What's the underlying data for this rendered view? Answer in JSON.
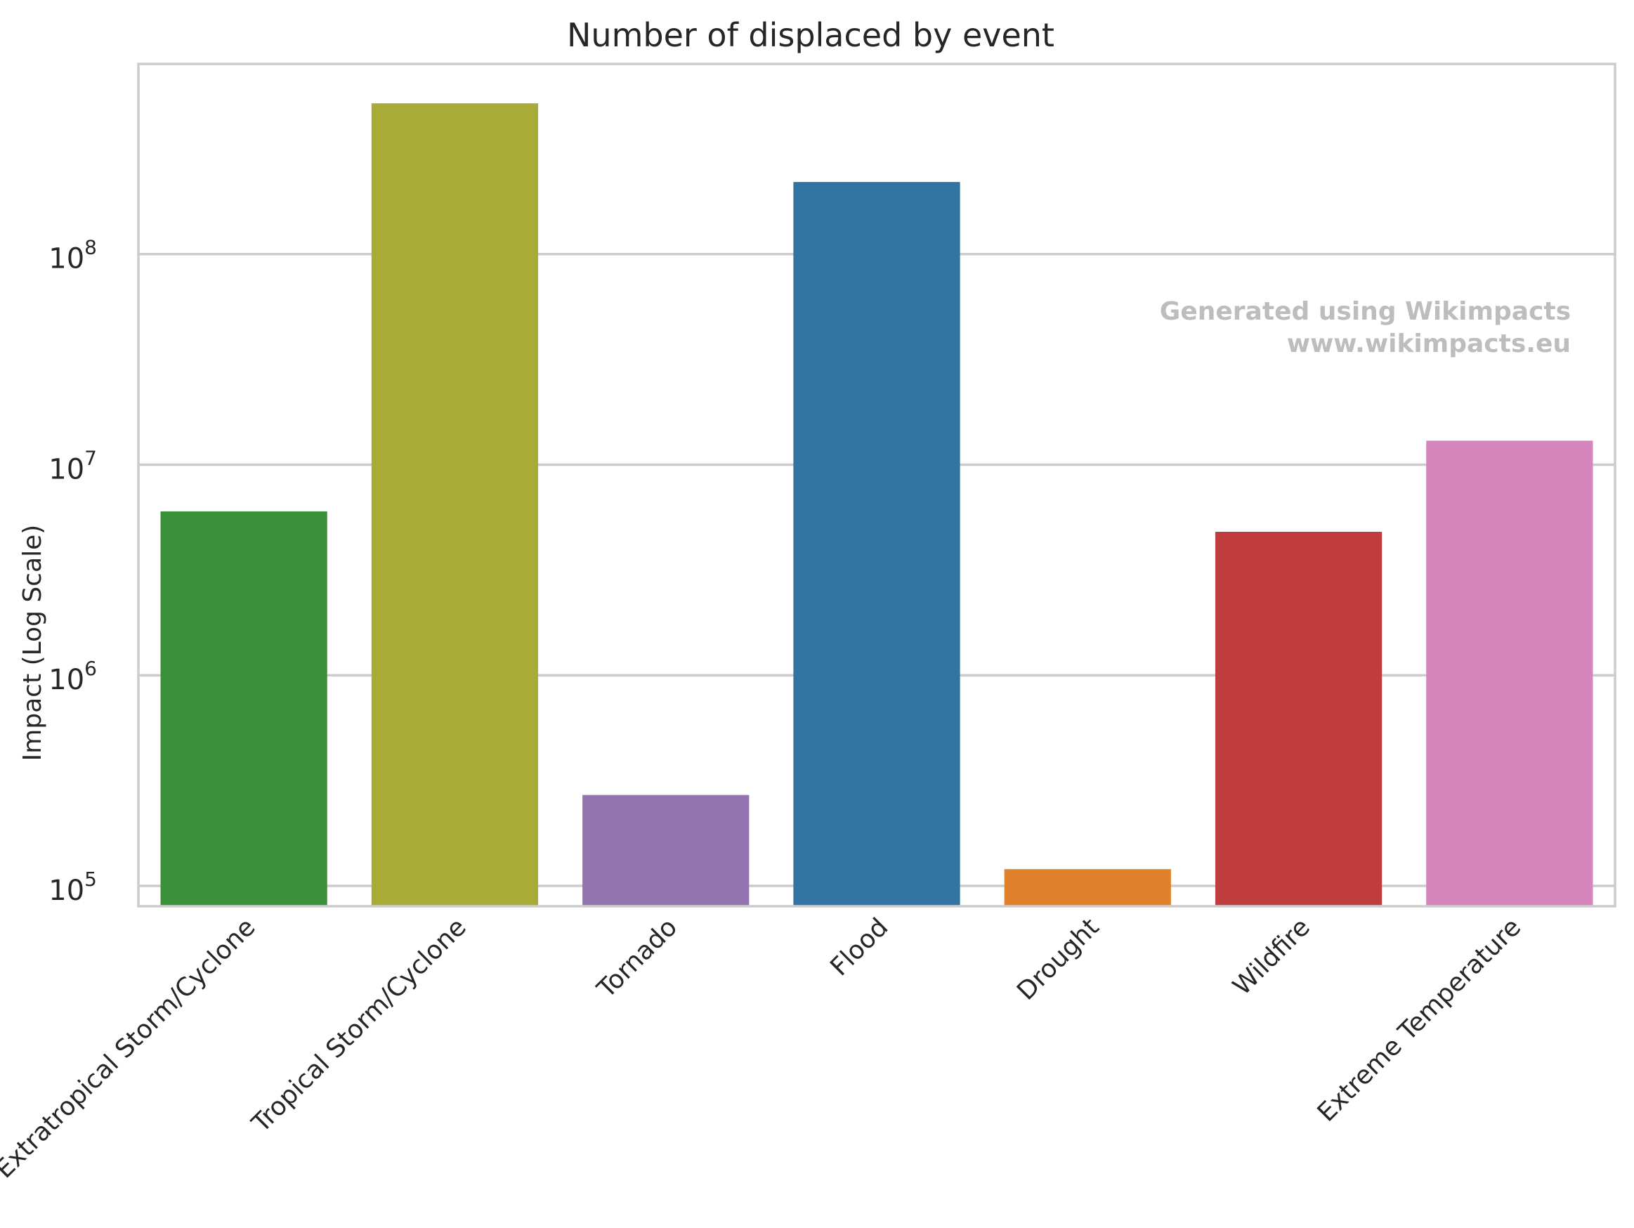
{
  "chart_data": {
    "type": "bar",
    "title": "Number of displaced by event",
    "xlabel": "",
    "ylabel": "Impact (Log Scale)",
    "yscale": "log",
    "ylim": [
      80000,
      800000000
    ],
    "yticks": [
      100000,
      1000000,
      10000000,
      100000000
    ],
    "ytick_labels": [
      {
        "base": "10",
        "exp": "5"
      },
      {
        "base": "10",
        "exp": "6"
      },
      {
        "base": "10",
        "exp": "7"
      },
      {
        "base": "10",
        "exp": "8"
      }
    ],
    "grid": "horizontal",
    "categories": [
      "Extratropical Storm/Cyclone",
      "Tropical Storm/Cyclone",
      "Tornado",
      "Flood",
      "Drought",
      "Wildfire",
      "Extreme Temperature"
    ],
    "values": [
      6000000,
      520000000,
      270000,
      220000000,
      120000,
      4800000,
      13000000
    ],
    "colors": [
      "#3a913a",
      "#a8ab36",
      "#9374ae",
      "#3274a1",
      "#e1812c",
      "#c03d3e",
      "#d584bc"
    ],
    "watermark": [
      "Generated using Wikimpacts",
      "www.wikimpacts.eu"
    ]
  }
}
